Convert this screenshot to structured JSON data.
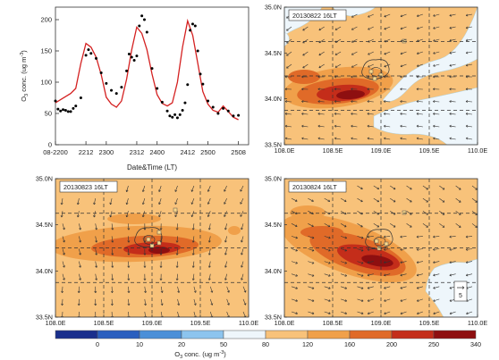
{
  "colors": {
    "scale": [
      "#1a2f8c",
      "#2a5fbf",
      "#4b8fd8",
      "#8cc4ee",
      "#eef6fb",
      "#f8c27a",
      "#f0a04a",
      "#e06a28",
      "#c42d1a",
      "#8e0f10"
    ],
    "model_line": "#d42020",
    "obs_point": "#000000",
    "box": "#555555"
  },
  "chart_data": [
    {
      "type": "line",
      "panel": "timeseries",
      "xlabel": "Date&Time (LT)",
      "ylabel_main": "O",
      "ylabel_sub": "3",
      "ylabel_tail": " conc. (ug m",
      "ylabel_exp": "-3",
      "ylabel_end": ")",
      "xlim": [
        0,
        19
      ],
      "ylim": [
        0,
        220
      ],
      "x_ticks": [
        {
          "pos": 0,
          "label": "08-2200"
        },
        {
          "pos": 3,
          "label": "2212"
        },
        {
          "pos": 5,
          "label": "2300"
        },
        {
          "pos": 8,
          "label": "2312"
        },
        {
          "pos": 10,
          "label": "2400"
        },
        {
          "pos": 13,
          "label": "2412"
        },
        {
          "pos": 15,
          "label": "2500"
        },
        {
          "pos": 18,
          "label": "2508"
        }
      ],
      "y_ticks": [
        0,
        50,
        100,
        150,
        200
      ],
      "model": {
        "x": [
          0,
          0.5,
          1,
          1.5,
          2,
          2.5,
          3,
          3.5,
          4,
          4.5,
          5,
          5.5,
          6,
          6.5,
          7,
          7.5,
          8,
          8.5,
          9,
          9.5,
          10,
          10.5,
          11,
          11.5,
          12,
          12.5,
          13,
          13.5,
          14,
          14.5,
          15,
          15.5,
          16,
          16.5,
          17,
          17.5,
          18
        ],
        "y": [
          67,
          72,
          77,
          82,
          90,
          130,
          162,
          156,
          140,
          112,
          76,
          65,
          60,
          70,
          105,
          152,
          188,
          178,
          152,
          113,
          80,
          66,
          62,
          67,
          100,
          156,
          198,
          175,
          130,
          85,
          65,
          55,
          52,
          62,
          53,
          44,
          40
        ]
      },
      "observed": {
        "x": [
          0,
          0.25,
          0.5,
          0.75,
          1,
          1.25,
          1.5,
          1.75,
          2,
          2.5,
          3,
          3.25,
          3.5,
          4,
          4.5,
          5,
          5.5,
          6,
          6.5,
          7,
          7.25,
          7.5,
          7.75,
          8,
          8.25,
          8.5,
          8.75,
          9,
          9.5,
          10,
          10.5,
          11,
          11.25,
          11.5,
          11.75,
          12,
          12.25,
          12.5,
          12.75,
          13,
          13.25,
          13.5,
          13.75,
          14,
          14.25,
          14.5,
          15,
          15.5,
          16,
          16.5,
          17,
          17.5,
          18
        ],
        "y": [
          70,
          57,
          54,
          56,
          55,
          53,
          53,
          58,
          62,
          75,
          143,
          152,
          146,
          138,
          115,
          98,
          87,
          82,
          92,
          118,
          145,
          140,
          135,
          142,
          190,
          206,
          200,
          180,
          122,
          90,
          68,
          54,
          46,
          44,
          48,
          43,
          48,
          55,
          67,
          96,
          183,
          193,
          190,
          150,
          113,
          97,
          70,
          60,
          50,
          58,
          54,
          46,
          47
        ]
      }
    },
    {
      "type": "heatmap",
      "panel": "map-20130822",
      "title": "20130822 16LT",
      "lon_ticks": [
        "108.0E",
        "108.5E",
        "109.0E",
        "109.5E",
        "110.0E"
      ],
      "lat_ticks": [
        "35.0N",
        "34.5N",
        "34.0N",
        "33.5N"
      ]
    },
    {
      "type": "heatmap",
      "panel": "map-20130823",
      "title": "20130823 16LT",
      "lon_ticks": [
        "108.0E",
        "108.5E",
        "109.0E",
        "109.5E",
        "110.0E"
      ],
      "lat_ticks": [
        "35.0N",
        "34.5N",
        "34.0N",
        "33.5N"
      ]
    },
    {
      "type": "heatmap",
      "panel": "map-20130824",
      "title": "20130824 16LT",
      "lon_ticks": [
        "108.0E",
        "108.5E",
        "109.0E",
        "109.5E",
        "110.0E"
      ],
      "lat_ticks": [
        "35.0N",
        "34.5N",
        "34.0N",
        "33.5N"
      ],
      "reference_vector": "5"
    }
  ],
  "colorbar": {
    "ticks": [
      "0",
      "10",
      "20",
      "50",
      "80",
      "120",
      "160",
      "200",
      "250",
      "340"
    ],
    "label_main": "O",
    "label_sub": "3",
    "label_tail": " conc. (ug m",
    "label_exp": "-3",
    "label_end": ")"
  }
}
